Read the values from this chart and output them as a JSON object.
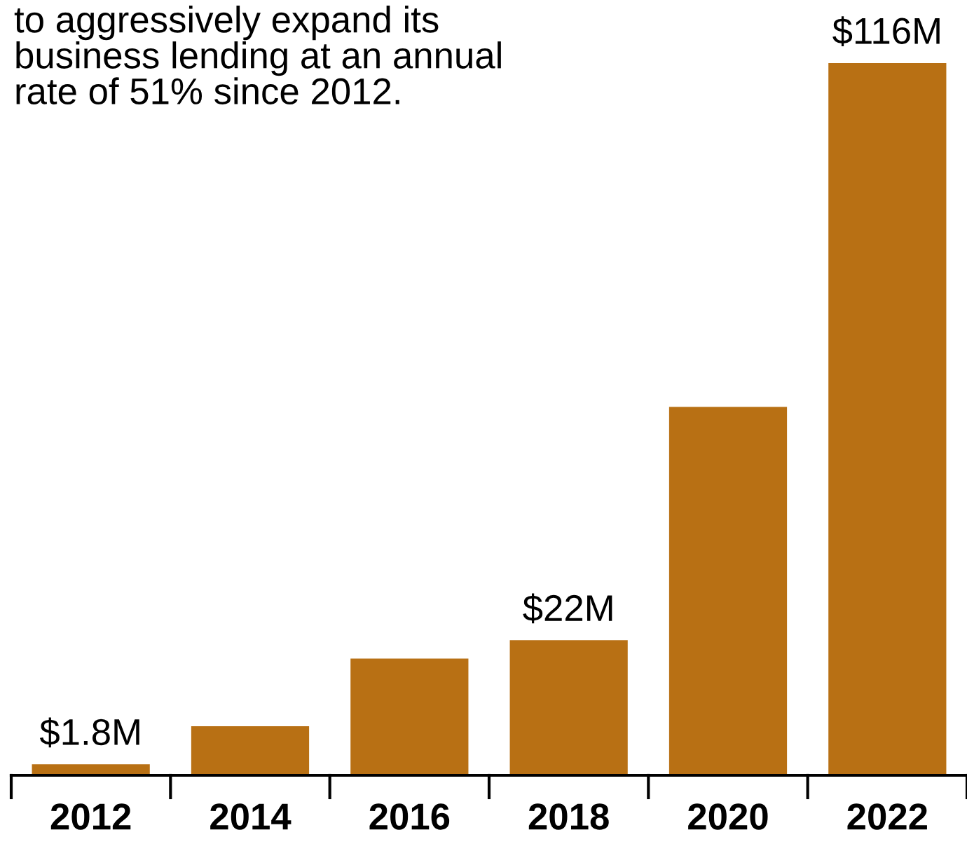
{
  "chart_data": {
    "type": "bar",
    "annotations": [
      "to aggressively expand its\nbusiness lending at an annual\nrate of 51% since 2012."
    ],
    "categories": [
      "2012",
      "2014",
      "2016",
      "2018",
      "2020",
      "2022"
    ],
    "values": [
      1.8,
      8,
      19,
      22,
      60,
      116
    ],
    "value_labels": [
      "$1.8M",
      null,
      null,
      "$22M",
      null,
      "$116M"
    ],
    "color": "#b87014",
    "grid": false,
    "legend": false
  }
}
